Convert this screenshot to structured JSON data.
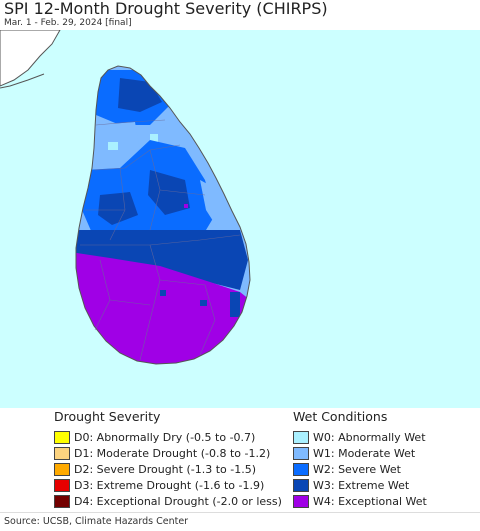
{
  "header": {
    "title": "SPI 12-Month Drought Severity (CHIRPS)",
    "subtitle": "Mar. 1 - Feb. 29, 2024 [final]"
  },
  "map": {
    "ocean_color": "#ccffff",
    "land_border_color": "#7d7d7d"
  },
  "legend": {
    "drought": {
      "heading": "Drought Severity",
      "items": [
        {
          "code": "D0",
          "label": "D0: Abnormally Dry (-0.5 to -0.7)",
          "color": "#ffff00"
        },
        {
          "code": "D1",
          "label": "D1: Moderate Drought (-0.8 to -1.2)",
          "color": "#fcd37f"
        },
        {
          "code": "D2",
          "label": "D2: Severe Drought (-1.3 to -1.5)",
          "color": "#ffaa00"
        },
        {
          "code": "D3",
          "label": "D3: Extreme Drought (-1.6 to -1.9)",
          "color": "#e60000"
        },
        {
          "code": "D4",
          "label": "D4: Exceptional Drought (-2.0 or less)",
          "color": "#730000"
        }
      ]
    },
    "wet": {
      "heading": "Wet Conditions",
      "items": [
        {
          "code": "W0",
          "label": "W0: Abnormally Wet",
          "color": "#aaf0ff"
        },
        {
          "code": "W1",
          "label": "W1: Moderate Wet",
          "color": "#7fbaff"
        },
        {
          "code": "W2",
          "label": "W2: Severe Wet",
          "color": "#0a6cff"
        },
        {
          "code": "W3",
          "label": "W3: Extreme Wet",
          "color": "#0a46b4"
        },
        {
          "code": "W4",
          "label": "W4: Exceptional Wet",
          "color": "#a000e6"
        }
      ]
    }
  },
  "footer": {
    "source": "Source: UCSB, Climate Hazards Center"
  }
}
